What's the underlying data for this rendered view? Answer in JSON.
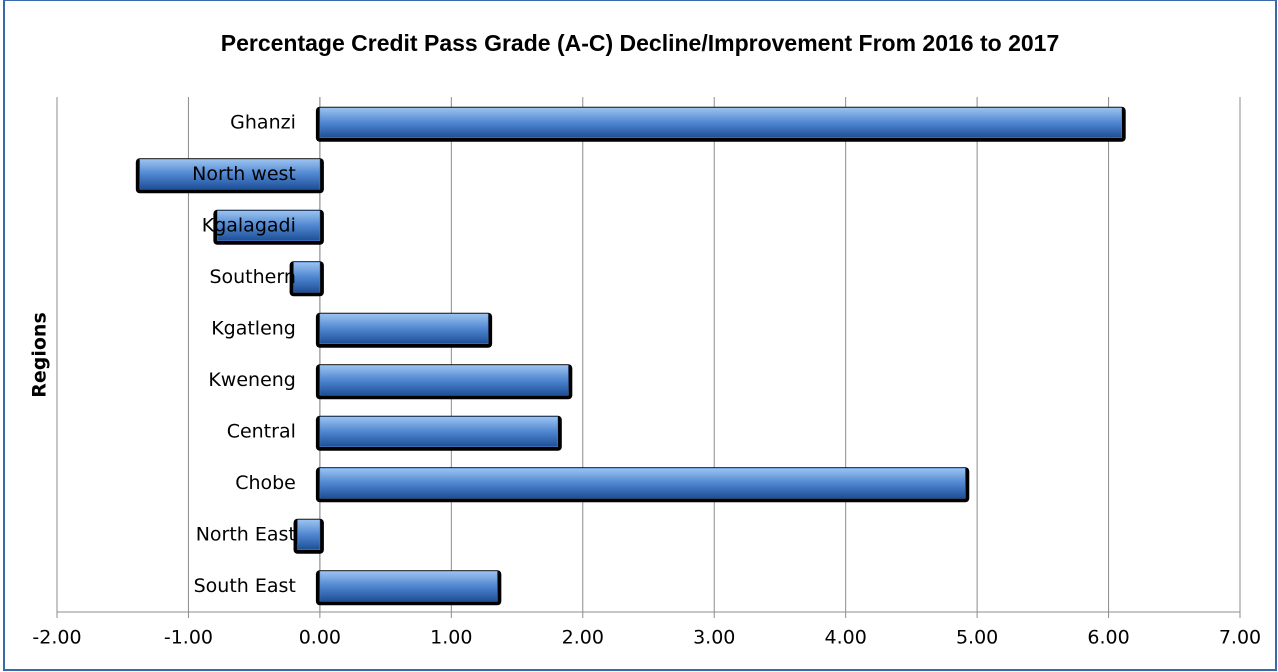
{
  "chart_data": {
    "type": "hbar",
    "title": "Percentage Credit Pass Grade (A-C) Decline/Improvement From 2016 to 2017",
    "y_label": "Regions",
    "categories": [
      "Ghanzi",
      "North west",
      "Kgalagadi",
      "Southern",
      "Kgatleng",
      "Kweneng",
      "Central",
      "Chobe",
      "North East",
      "South East"
    ],
    "values": [
      6.1,
      -1.37,
      -0.78,
      -0.2,
      1.28,
      1.89,
      1.81,
      4.91,
      -0.17,
      1.35
    ],
    "color": "#4f86d0",
    "xlim": [
      -2,
      7
    ],
    "xticks": [
      {
        "value": -2,
        "label": "-2.00"
      },
      {
        "value": -1,
        "label": "-1.00"
      },
      {
        "value": 0,
        "label": "0.00"
      },
      {
        "value": 1,
        "label": "1.00"
      },
      {
        "value": 2,
        "label": "2.00"
      },
      {
        "value": 3,
        "label": "3.00"
      },
      {
        "value": 4,
        "label": "4.00"
      },
      {
        "value": 5,
        "label": "5.00"
      },
      {
        "value": 6,
        "label": "6.00"
      },
      {
        "value": 7,
        "label": "7.00"
      }
    ],
    "grid": true
  }
}
